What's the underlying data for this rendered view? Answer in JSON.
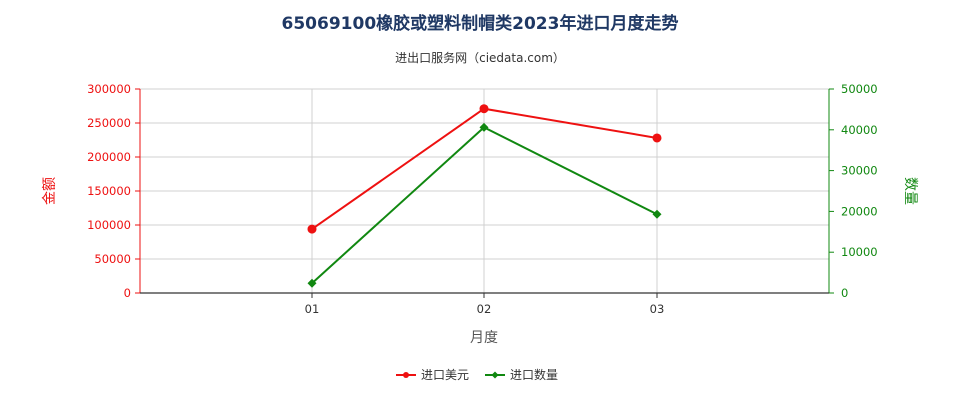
{
  "chart_data": {
    "type": "line",
    "title": "65069100橡胶或塑料制帽类2023年进口月度走势",
    "subtitle": "进出口服务网（ciedata.com）",
    "xlabel": "月度",
    "ylabel_left": "金额",
    "ylabel_right": "数量",
    "categories": [
      "01",
      "02",
      "03"
    ],
    "ylim_left": [
      0,
      300000
    ],
    "ylim_right": [
      0,
      50000
    ],
    "yticks_left": [
      "0",
      "50000",
      "100000",
      "150000",
      "200000",
      "250000",
      "300000"
    ],
    "yticks_right": [
      "0",
      "10000",
      "20000",
      "30000",
      "40000",
      "50000"
    ],
    "grid": true,
    "legend_position": "bottom",
    "series": [
      {
        "name": "进口美元",
        "axis": "left",
        "color": "#ee1111",
        "marker": "circle",
        "values": [
          94000,
          271000,
          228000
        ]
      },
      {
        "name": "进口数量",
        "axis": "right",
        "color": "#118811",
        "marker": "diamond",
        "values": [
          2400,
          40600,
          19300
        ]
      }
    ]
  }
}
